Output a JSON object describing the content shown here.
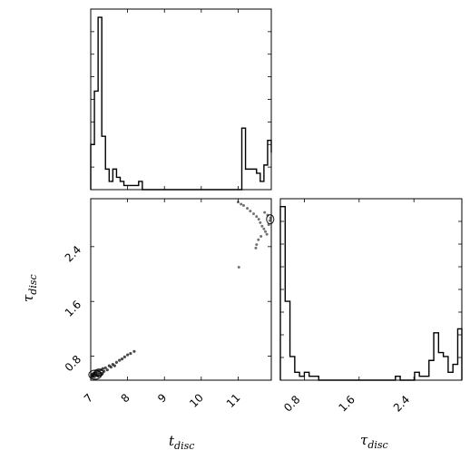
{
  "chart_data": [
    {
      "type": "histogram",
      "panel": "t_disc_marginal",
      "x_param": "t_disc",
      "xlim": [
        7.0,
        11.9
      ],
      "bin_edges": [
        7.0,
        7.1,
        7.2,
        7.3,
        7.4,
        7.5,
        7.6,
        7.7,
        7.8,
        7.9,
        8.0,
        8.1,
        8.2,
        8.3,
        8.4,
        8.5,
        8.6,
        8.7,
        8.8,
        8.9,
        9.0,
        9.1,
        9.2,
        9.3,
        9.4,
        9.5,
        9.6,
        9.7,
        9.8,
        9.9,
        10.0,
        10.1,
        10.2,
        10.3,
        10.4,
        10.5,
        10.6,
        10.7,
        10.8,
        10.9,
        11.0,
        11.1,
        11.2,
        11.3,
        11.4,
        11.5,
        11.6,
        11.7,
        11.8,
        11.9
      ],
      "counts": [
        11,
        24,
        42,
        13,
        5,
        2,
        5,
        3,
        2,
        1,
        1,
        1,
        1,
        2,
        0,
        0,
        0,
        0,
        0,
        0,
        0,
        0,
        0,
        0,
        0,
        0,
        0,
        0,
        0,
        0,
        0,
        0,
        0,
        0,
        0,
        0,
        0,
        0,
        0,
        0,
        0,
        15,
        5,
        5,
        5,
        4,
        2,
        6,
        12,
        9
      ],
      "ylim": [
        0,
        44
      ]
    },
    {
      "type": "scatter",
      "panel": "joint",
      "x_param": "t_disc",
      "y_param": "tau_disc",
      "xlim": [
        7.0,
        11.9
      ],
      "ylim": [
        0.45,
        3.1
      ],
      "x_ticks": [
        "7",
        "8",
        "9",
        "10",
        "11"
      ],
      "y_ticks": [
        "0.8",
        "1.6",
        "2.4"
      ],
      "x_tick_values": [
        7,
        8,
        9,
        10,
        11
      ],
      "y_tick_values": [
        0.8,
        1.6,
        2.4
      ],
      "points": [
        [
          7.02,
          0.52
        ],
        [
          7.04,
          0.5
        ],
        [
          7.05,
          0.54
        ],
        [
          7.06,
          0.51
        ],
        [
          7.08,
          0.55
        ],
        [
          7.09,
          0.53
        ],
        [
          7.1,
          0.5
        ],
        [
          7.12,
          0.57
        ],
        [
          7.14,
          0.55
        ],
        [
          7.15,
          0.52
        ],
        [
          7.17,
          0.58
        ],
        [
          7.18,
          0.54
        ],
        [
          7.2,
          0.51
        ],
        [
          7.22,
          0.59
        ],
        [
          7.24,
          0.56
        ],
        [
          7.25,
          0.53
        ],
        [
          7.28,
          0.6
        ],
        [
          7.3,
          0.55
        ],
        [
          7.33,
          0.62
        ],
        [
          7.36,
          0.58
        ],
        [
          7.4,
          0.63
        ],
        [
          7.45,
          0.6
        ],
        [
          7.5,
          0.66
        ],
        [
          7.55,
          0.64
        ],
        [
          7.6,
          0.68
        ],
        [
          7.65,
          0.66
        ],
        [
          7.7,
          0.71
        ],
        [
          7.78,
          0.74
        ],
        [
          7.85,
          0.76
        ],
        [
          7.92,
          0.79
        ],
        [
          8.0,
          0.82
        ],
        [
          8.08,
          0.84
        ],
        [
          8.18,
          0.87
        ],
        [
          11.02,
          2.1
        ],
        [
          11.0,
          3.05
        ],
        [
          11.08,
          3.02
        ],
        [
          11.15,
          3.0
        ],
        [
          11.25,
          2.96
        ],
        [
          11.33,
          2.92
        ],
        [
          11.42,
          2.88
        ],
        [
          11.5,
          2.84
        ],
        [
          11.56,
          2.8
        ],
        [
          11.6,
          2.75
        ],
        [
          11.65,
          2.7
        ],
        [
          11.7,
          2.66
        ],
        [
          11.74,
          2.62
        ],
        [
          11.62,
          2.55
        ],
        [
          11.55,
          2.5
        ],
        [
          11.5,
          2.43
        ],
        [
          11.48,
          2.38
        ],
        [
          11.78,
          2.58
        ],
        [
          11.83,
          2.72
        ],
        [
          11.86,
          2.78
        ],
        [
          11.88,
          2.82
        ],
        [
          11.8,
          2.86
        ],
        [
          11.72,
          2.9
        ]
      ]
    },
    {
      "type": "histogram",
      "panel": "tau_disc_marginal",
      "x_param": "tau_disc",
      "xlim": [
        0.45,
        3.1
      ],
      "x_ticks": [
        "0.8",
        "1.6",
        "2.4"
      ],
      "x_tick_values": [
        0.8,
        1.6,
        2.4
      ],
      "bin_edges": [
        0.45,
        0.52,
        0.59,
        0.66,
        0.73,
        0.8,
        0.87,
        0.94,
        1.01,
        1.08,
        1.15,
        1.22,
        1.29,
        1.36,
        1.43,
        1.5,
        1.57,
        1.64,
        1.71,
        1.78,
        1.85,
        1.92,
        1.99,
        2.06,
        2.13,
        2.2,
        2.27,
        2.34,
        2.41,
        2.48,
        2.55,
        2.62,
        2.69,
        2.76,
        2.83,
        2.9,
        2.97,
        3.04,
        3.1
      ],
      "counts": [
        44,
        20,
        6,
        2,
        1,
        2,
        1,
        1,
        0,
        0,
        0,
        0,
        0,
        0,
        0,
        0,
        0,
        0,
        0,
        0,
        0,
        0,
        0,
        0,
        1,
        0,
        0,
        0,
        2,
        1,
        1,
        5,
        12,
        7,
        6,
        2,
        4,
        13
      ],
      "ylim": [
        0,
        46
      ]
    }
  ],
  "labels": {
    "x_joint": "t",
    "x_joint_sub": "disc",
    "y_joint": "τ",
    "y_joint_sub": "disc",
    "x_tau": "τ",
    "x_tau_sub": "disc"
  }
}
